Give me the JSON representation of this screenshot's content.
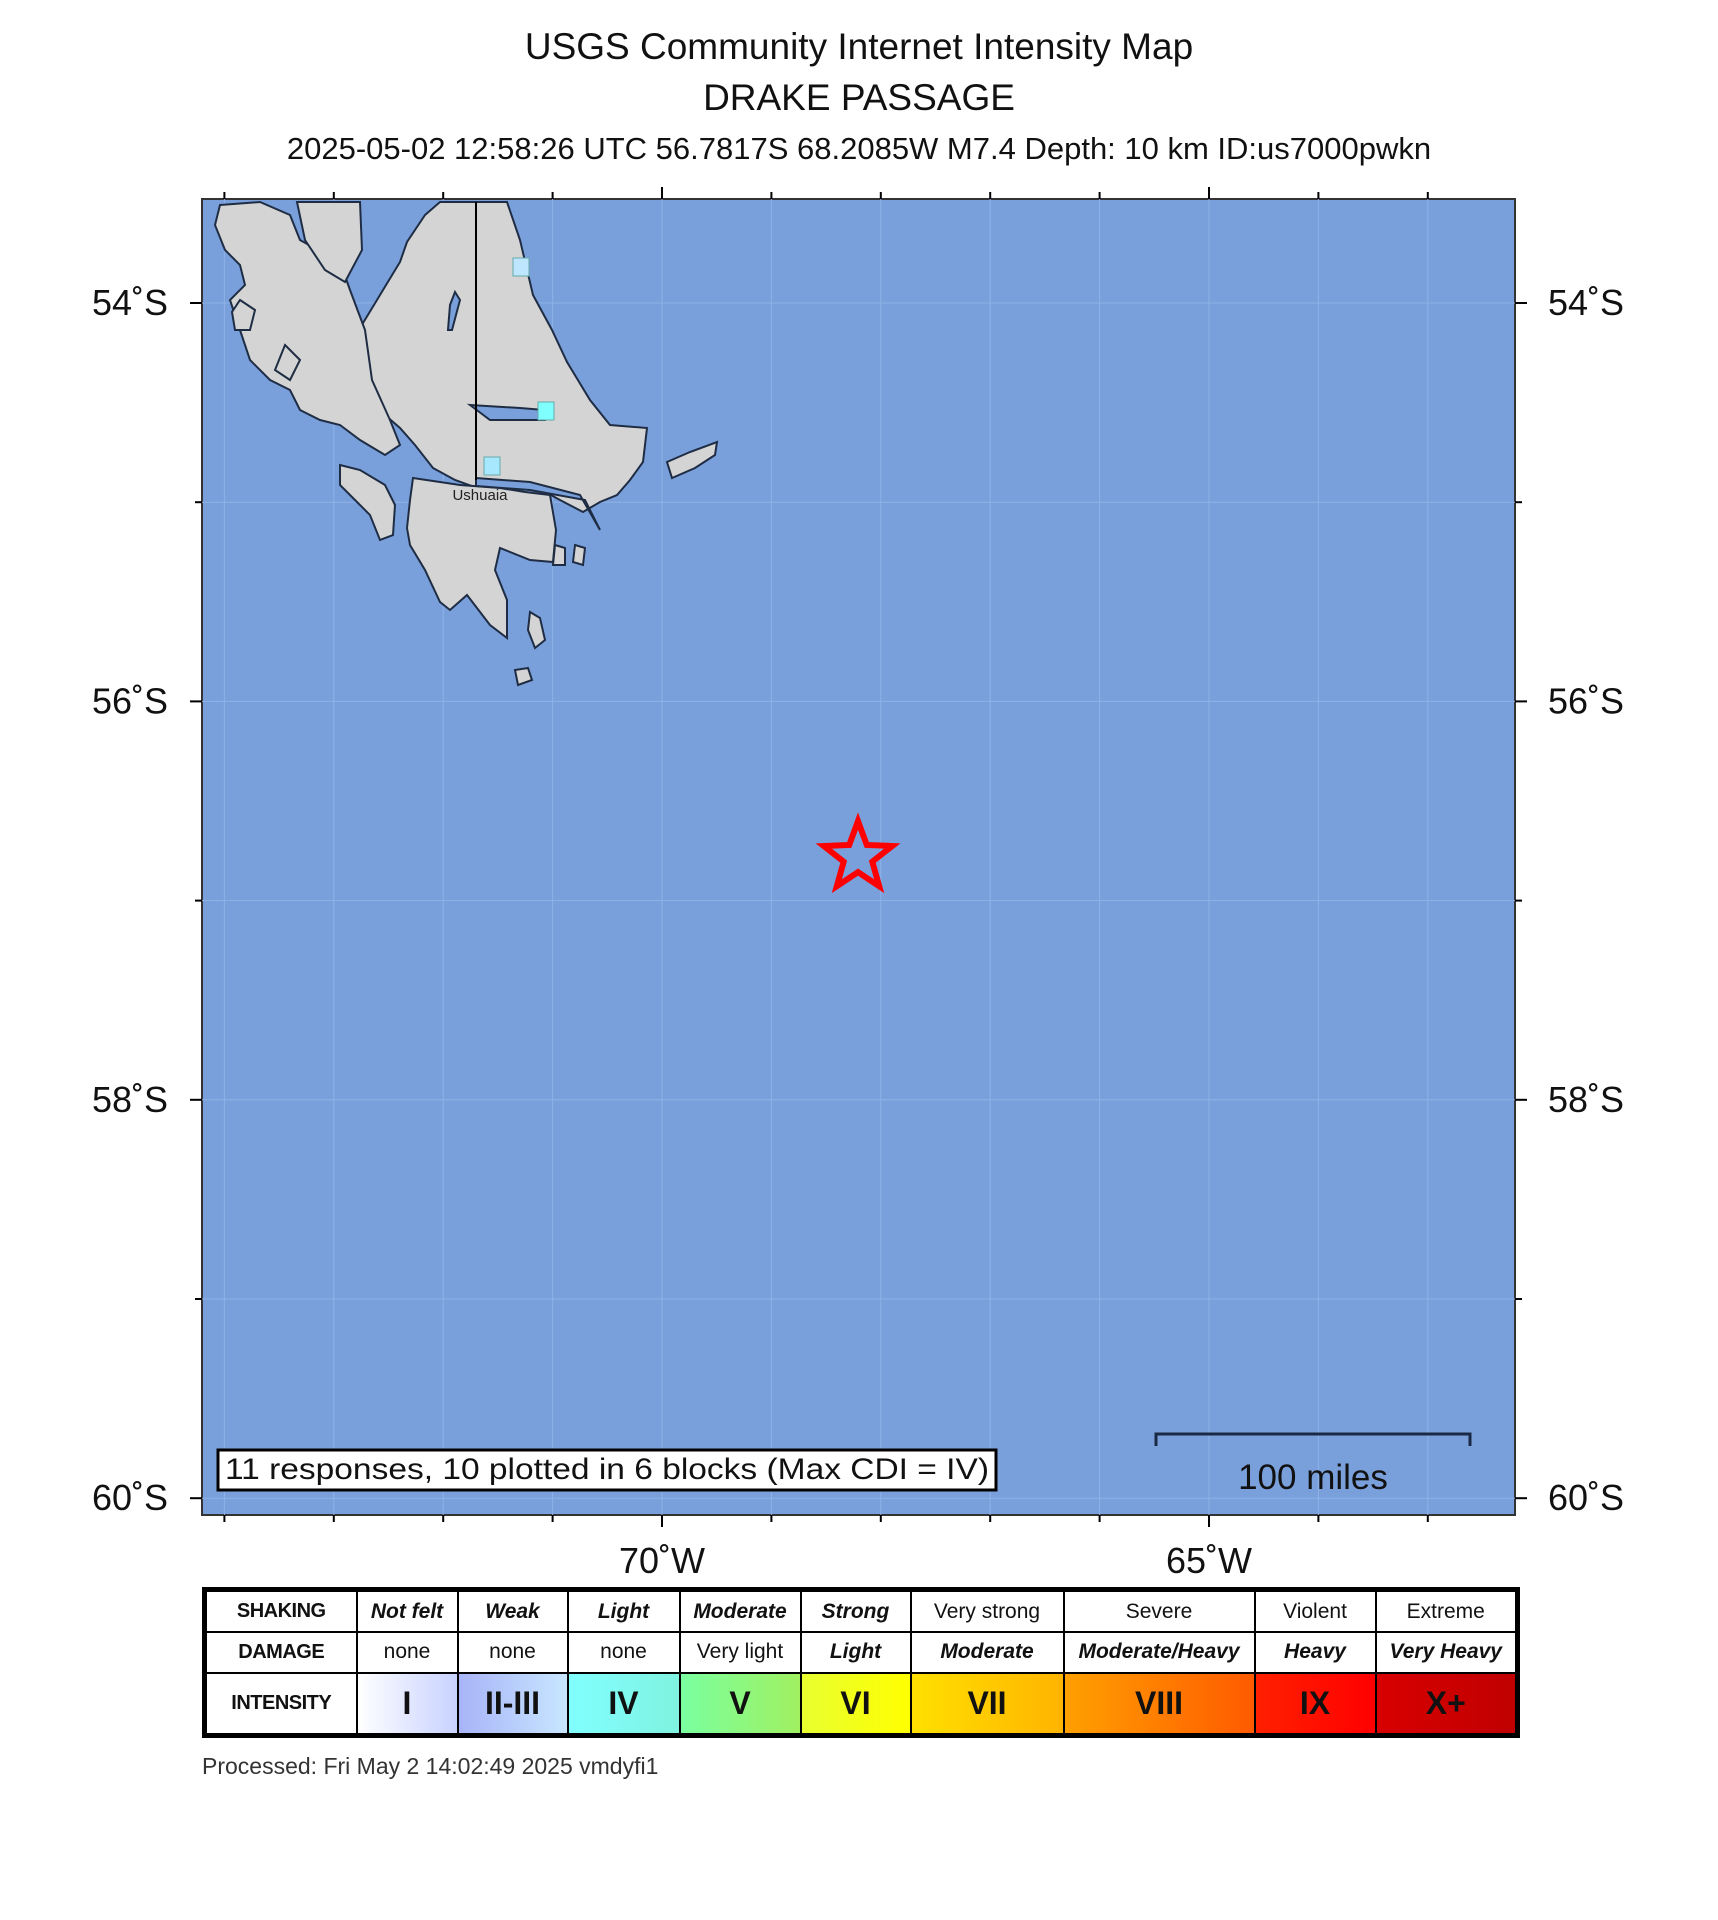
{
  "header": {
    "title": "USGS Community Internet Intensity Map",
    "region": "DRAKE PASSAGE",
    "event_info": "2025-05-02 12:58:26 UTC 56.7817S 68.2085W M7.4 Depth: 10 km ID:us7000pwkn"
  },
  "map": {
    "ocean_color": "#7aa0dc",
    "land_color": "#d4d4d4",
    "epicenter": {
      "lat": -56.7817,
      "lon": -68.2085,
      "icon": "star-icon",
      "color": "#ff0000"
    },
    "lat_labels": [
      "54˚S",
      "56˚S",
      "58˚S",
      "60˚S"
    ],
    "lon_labels": [
      "70˚W",
      "65˚W"
    ],
    "city_label": "Ushuaia",
    "cdi_blocks": [
      {
        "intensity": "II-III",
        "color": "#bfe6ff"
      },
      {
        "intensity": "IV",
        "color": "#80ffff"
      },
      {
        "intensity": "III",
        "color": "#a8e8ff"
      }
    ],
    "responses_text": "11 responses, 10 plotted in 6 blocks (Max CDI = IV)",
    "scale_label": "100 miles"
  },
  "legend": {
    "row_headers": [
      "SHAKING",
      "DAMAGE",
      "INTENSITY"
    ],
    "columns": [
      {
        "shaking": "Not felt",
        "damage": "none",
        "intensity": "I",
        "colors": [
          "#ffffff",
          "#c8d2ff"
        ]
      },
      {
        "shaking": "Weak",
        "damage": "none",
        "intensity": "II-III",
        "colors": [
          "#a8b4f8",
          "#c8e6ff"
        ]
      },
      {
        "shaking": "Light",
        "damage": "none",
        "intensity": "IV",
        "colors": [
          "#80ffff",
          "#80f2e0"
        ]
      },
      {
        "shaking": "Moderate",
        "damage": "Very light",
        "intensity": "V",
        "colors": [
          "#7affa0",
          "#a0f060"
        ]
      },
      {
        "shaking": "Strong",
        "damage": "Light",
        "intensity": "VI",
        "colors": [
          "#e8ff30",
          "#ffff00"
        ]
      },
      {
        "shaking": "Very strong",
        "damage": "Moderate",
        "intensity": "VII",
        "colors": [
          "#ffe000",
          "#ffb400"
        ]
      },
      {
        "shaking": "Severe",
        "damage": "Moderate/Heavy",
        "intensity": "VIII",
        "colors": [
          "#ffa000",
          "#ff5a00"
        ]
      },
      {
        "shaking": "Violent",
        "damage": "Heavy",
        "intensity": "IX",
        "colors": [
          "#ff2000",
          "#ff0000"
        ]
      },
      {
        "shaking": "Extreme",
        "damage": "Very Heavy",
        "intensity": "X+",
        "colors": [
          "#d80000",
          "#c00000"
        ]
      }
    ]
  },
  "footer": {
    "processed": "Processed: Fri May  2 14:02:49 2025 vmdyfi1"
  }
}
